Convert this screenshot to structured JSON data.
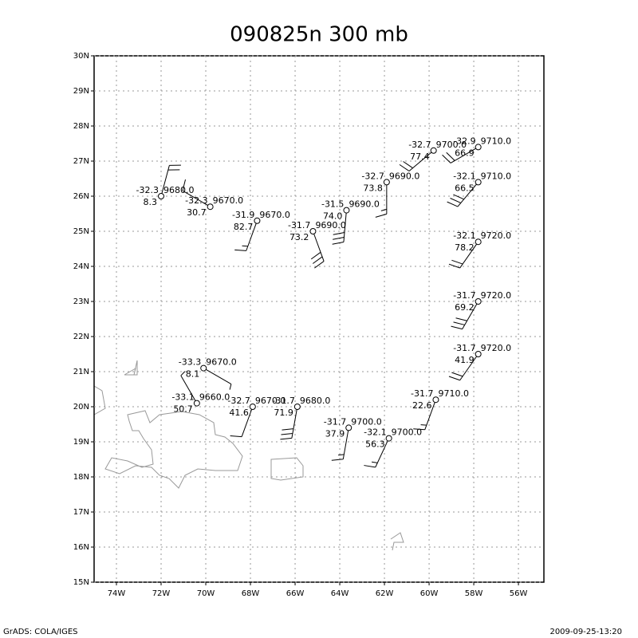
{
  "title": "090825n 300 mb",
  "footer_left": "GrADS: COLA/IGES",
  "footer_right": "2009-09-25-13:20",
  "map": {
    "lon_range": [
      -75,
      -54.86
    ],
    "lat_range": [
      15,
      30
    ],
    "lon_ticks": [
      {
        "value": -74,
        "label": "74W"
      },
      {
        "value": -72,
        "label": "72W"
      },
      {
        "value": -70,
        "label": "70W"
      },
      {
        "value": -68,
        "label": "68W"
      },
      {
        "value": -66,
        "label": "66W"
      },
      {
        "value": -64,
        "label": "64W"
      },
      {
        "value": -62,
        "label": "62W"
      },
      {
        "value": -60,
        "label": "60W"
      },
      {
        "value": -58,
        "label": "58W"
      },
      {
        "value": -56,
        "label": "56W"
      }
    ],
    "lat_ticks": [
      {
        "value": 15,
        "label": "15N"
      },
      {
        "value": 16,
        "label": "16N"
      },
      {
        "value": 17,
        "label": "17N"
      },
      {
        "value": 18,
        "label": "18N"
      },
      {
        "value": 19,
        "label": "19N"
      },
      {
        "value": 20,
        "label": "20N"
      },
      {
        "value": 21,
        "label": "21N"
      },
      {
        "value": 22,
        "label": "22N"
      },
      {
        "value": 23,
        "label": "23N"
      },
      {
        "value": 24,
        "label": "24N"
      },
      {
        "value": 25,
        "label": "25N"
      },
      {
        "value": 26,
        "label": "26N"
      },
      {
        "value": 27,
        "label": "27N"
      },
      {
        "value": 28,
        "label": "28N"
      },
      {
        "value": 29,
        "label": "29N"
      },
      {
        "value": 30,
        "label": "30N"
      }
    ],
    "stations": [
      {
        "lon": -72.0,
        "lat": 26.0,
        "temp": "-32.3",
        "height": "9680.0",
        "rh": "8.3",
        "wind_dir": 15,
        "wind_speed": 20
      },
      {
        "lon": -69.8,
        "lat": 25.7,
        "temp": "-32.3",
        "height": "9670.0",
        "rh": "30.7",
        "wind_dir": 300,
        "wind_speed": 10
      },
      {
        "lon": -67.7,
        "lat": 25.3,
        "temp": "-31.9",
        "height": "9670.0",
        "rh": "82.7",
        "wind_dir": 200,
        "wind_speed": 15
      },
      {
        "lon": -65.2,
        "lat": 25.0,
        "temp": "-31.7",
        "height": "9690.0",
        "rh": "73.2",
        "wind_dir": 160,
        "wind_speed": 30
      },
      {
        "lon": -63.7,
        "lat": 25.6,
        "temp": "-31.5",
        "height": "9690.0",
        "rh": "74.0",
        "wind_dir": 185,
        "wind_speed": 30
      },
      {
        "lon": -61.9,
        "lat": 26.4,
        "temp": "-32.7",
        "height": "9690.0",
        "rh": "73.8",
        "wind_dir": 180,
        "wind_speed": 15
      },
      {
        "lon": -59.8,
        "lat": 27.3,
        "temp": "-32.7",
        "height": "9700.0",
        "rh": "77.4",
        "wind_dir": 230,
        "wind_speed": 20
      },
      {
        "lon": -57.8,
        "lat": 27.4,
        "temp": "-32.9",
        "height": "9710.0",
        "rh": "66.9",
        "wind_dir": 240,
        "wind_speed": 20
      },
      {
        "lon": -57.8,
        "lat": 26.4,
        "temp": "-32.1",
        "height": "9710.0",
        "rh": "66.5",
        "wind_dir": 220,
        "wind_speed": 30
      },
      {
        "lon": -57.8,
        "lat": 24.7,
        "temp": "-32.1",
        "height": "9720.0",
        "rh": "78.2",
        "wind_dir": 215,
        "wind_speed": 20
      },
      {
        "lon": -57.8,
        "lat": 23.0,
        "temp": "-31.7",
        "height": "9720.0",
        "rh": "69.2",
        "wind_dir": 210,
        "wind_speed": 30
      },
      {
        "lon": -57.8,
        "lat": 21.5,
        "temp": "-31.7",
        "height": "9720.0",
        "rh": "41.9",
        "wind_dir": 215,
        "wind_speed": 20
      },
      {
        "lon": -59.7,
        "lat": 20.2,
        "temp": "-31.7",
        "height": "9710.0",
        "rh": "22.6",
        "wind_dir": 200,
        "wind_speed": 15
      },
      {
        "lon": -61.8,
        "lat": 19.1,
        "temp": "-32.1",
        "height": "9700.0",
        "rh": "56.3",
        "wind_dir": 205,
        "wind_speed": 15
      },
      {
        "lon": -63.6,
        "lat": 19.4,
        "temp": "-31.7",
        "height": "9700.0",
        "rh": "37.9",
        "wind_dir": 190,
        "wind_speed": 15
      },
      {
        "lon": -65.9,
        "lat": 20.0,
        "temp": "-31.7",
        "height": "9680.0",
        "rh": "71.9",
        "wind_dir": 190,
        "wind_speed": 30
      },
      {
        "lon": -67.9,
        "lat": 20.0,
        "temp": "-32.7",
        "height": "9670.0",
        "rh": "41.6",
        "wind_dir": 200,
        "wind_speed": 10
      },
      {
        "lon": -70.4,
        "lat": 20.1,
        "temp": "-33.1",
        "height": "9660.0",
        "rh": "50.7",
        "wind_dir": 330,
        "wind_speed": 5
      },
      {
        "lon": -70.1,
        "lat": 21.1,
        "temp": "-33.3",
        "height": "9670.0",
        "rh": "8.1",
        "wind_dir": 120,
        "wind_speed": 5
      }
    ]
  }
}
